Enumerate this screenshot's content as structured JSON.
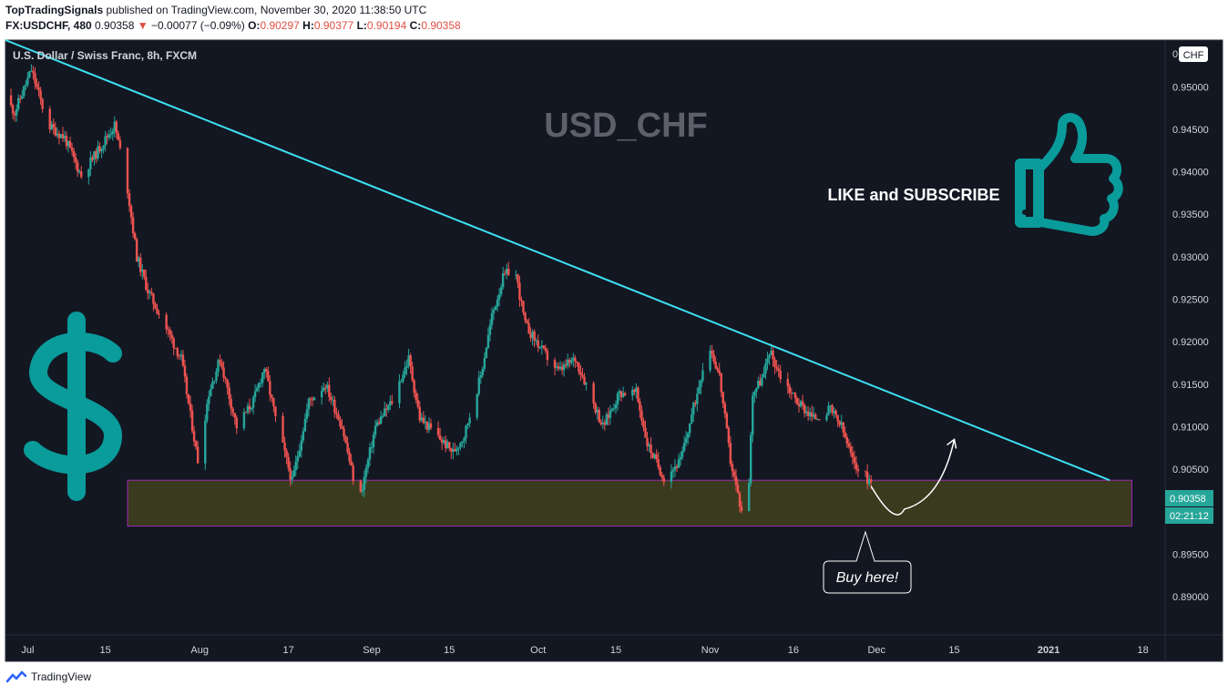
{
  "header": {
    "publisher": "TopTradingSignals",
    "published_text": "published on TradingView.com, November 30, 2020 11:38:50 UTC",
    "symbol": "FX:USDCHF, 480",
    "last": "0.90358",
    "arrow": "▼",
    "change": "−0.00077 (−0.09%)",
    "o_label": "O:",
    "o_value": "0.90297",
    "h_label": "H:",
    "h_value": "0.90377",
    "l_label": "L:",
    "l_value": "0.90194",
    "c_label": "C:",
    "c_value": "0.90358"
  },
  "footer": {
    "brand": "TradingView"
  },
  "chart_data": {
    "type": "candlestick",
    "instrument_label": "U.S. Dollar / Swiss Franc, 8h, FXCM",
    "watermark": "USD_CHF",
    "currency_badge": "CHF",
    "axis_top_label": "0",
    "price_tag": "0.90358",
    "countdown_tag": "02:21:12",
    "ylim": [
      0.8855,
      0.9555
    ],
    "yticks": [
      "0.95000",
      "0.94500",
      "0.94000",
      "0.93500",
      "0.93000",
      "0.92500",
      "0.92000",
      "0.91500",
      "0.91000",
      "0.90500",
      "0.90000",
      "0.89500",
      "0.89000"
    ],
    "xlim": [
      "2020-06-27",
      "2021-01-22"
    ],
    "xticks": [
      {
        "label": "Jul",
        "date": "2020-07-01"
      },
      {
        "label": "15",
        "date": "2020-07-15"
      },
      {
        "label": "Aug",
        "date": "2020-08-01"
      },
      {
        "label": "17",
        "date": "2020-08-17"
      },
      {
        "label": "Sep",
        "date": "2020-09-01"
      },
      {
        "label": "15",
        "date": "2020-09-15"
      },
      {
        "label": "Oct",
        "date": "2020-10-01"
      },
      {
        "label": "15",
        "date": "2020-10-15"
      },
      {
        "label": "Nov",
        "date": "2020-11-01"
      },
      {
        "label": "16",
        "date": "2020-11-16"
      },
      {
        "label": "Dec",
        "date": "2020-12-01"
      },
      {
        "label": "15",
        "date": "2020-12-15"
      },
      {
        "label": "2021",
        "date": "2021-01-01"
      },
      {
        "label": "18",
        "date": "2021-01-18"
      }
    ],
    "path_anchors": [
      [
        "2020-06-27",
        0.949
      ],
      [
        "2020-06-29",
        0.947
      ],
      [
        "2020-07-02",
        0.952
      ],
      [
        "2020-07-05",
        0.9455
      ],
      [
        "2020-07-08",
        0.944
      ],
      [
        "2020-07-11",
        0.9395
      ],
      [
        "2020-07-14",
        0.9425
      ],
      [
        "2020-07-17",
        0.9455
      ],
      [
        "2020-07-19",
        0.9395
      ],
      [
        "2020-07-21",
        0.93
      ],
      [
        "2020-07-23",
        0.926
      ],
      [
        "2020-07-26",
        0.922
      ],
      [
        "2020-07-29",
        0.918
      ],
      [
        "2020-08-01",
        0.906
      ],
      [
        "2020-08-03",
        0.914
      ],
      [
        "2020-08-05",
        0.918
      ],
      [
        "2020-08-08",
        0.91
      ],
      [
        "2020-08-11",
        0.913
      ],
      [
        "2020-08-13",
        0.917
      ],
      [
        "2020-08-15",
        0.911
      ],
      [
        "2020-08-18",
        0.9035
      ],
      [
        "2020-08-21",
        0.913
      ],
      [
        "2020-08-24",
        0.915
      ],
      [
        "2020-08-27",
        0.91
      ],
      [
        "2020-08-30",
        0.901
      ],
      [
        "2020-09-02",
        0.91
      ],
      [
        "2020-09-05",
        0.913
      ],
      [
        "2020-09-08",
        0.918
      ],
      [
        "2020-09-10",
        0.911
      ],
      [
        "2020-09-13",
        0.909
      ],
      [
        "2020-09-16",
        0.907
      ],
      [
        "2020-09-18",
        0.909
      ],
      [
        "2020-09-21",
        0.916
      ],
      [
        "2020-09-23",
        0.923
      ],
      [
        "2020-09-25",
        0.9275
      ],
      [
        "2020-09-27",
        0.929
      ],
      [
        "2020-09-29",
        0.922
      ],
      [
        "2020-10-02",
        0.919
      ],
      [
        "2020-10-05",
        0.9165
      ],
      [
        "2020-10-08",
        0.918
      ],
      [
        "2020-10-10",
        0.915
      ],
      [
        "2020-10-13",
        0.91
      ],
      [
        "2020-10-16",
        0.914
      ],
      [
        "2020-10-19",
        0.914
      ],
      [
        "2020-10-21",
        0.908
      ],
      [
        "2020-10-24",
        0.904
      ],
      [
        "2020-10-27",
        0.906
      ],
      [
        "2020-10-30",
        0.914
      ],
      [
        "2020-11-01",
        0.92
      ],
      [
        "2020-11-03",
        0.916
      ],
      [
        "2020-11-05",
        0.906
      ],
      [
        "2020-11-07",
        0.9
      ],
      [
        "2020-11-08",
        0.8985
      ],
      [
        "2020-11-09",
        0.914
      ],
      [
        "2020-11-11",
        0.916
      ],
      [
        "2020-11-12",
        0.919
      ],
      [
        "2020-11-14",
        0.916
      ],
      [
        "2020-11-17",
        0.913
      ],
      [
        "2020-11-20",
        0.911
      ],
      [
        "2020-11-23",
        0.912
      ],
      [
        "2020-11-25",
        0.91
      ],
      [
        "2020-11-27",
        0.906
      ],
      [
        "2020-11-30",
        0.9036
      ]
    ],
    "trendline": [
      [
        "2020-06-27",
        0.9555
      ],
      [
        "2021-01-12",
        0.9037
      ]
    ],
    "zone": {
      "from": "2020-07-19",
      "to": "2021-01-16",
      "low": 0.8983,
      "high": 0.9037
    },
    "projection": [
      [
        "2020-11-30",
        0.903
      ],
      [
        "2020-12-06",
        0.9003
      ],
      [
        "2020-12-15",
        0.9085
      ]
    ],
    "annotation_text": "Buy here!",
    "like_text": "LIKE and SUBSCRIBE",
    "colors": {
      "background": "#131722",
      "up": "#26a69a",
      "down": "#ef5350",
      "trendline": "#3de0f0",
      "zone_fill": "#3a3a1e",
      "zone_border": "#9c27b0",
      "watermark": "#5d606b",
      "dollar": "#0a9b9b",
      "thumb": "#0a9b9b",
      "price_tag": "#26a69a"
    }
  }
}
